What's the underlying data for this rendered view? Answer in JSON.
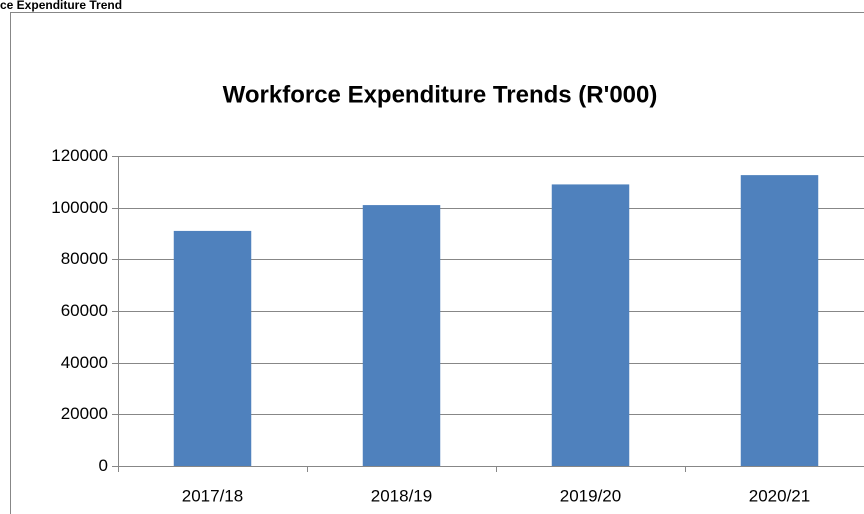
{
  "caption": "ce Expenditure Trend",
  "chart_data": {
    "type": "bar",
    "title": "Workforce Expenditure Trends (R'000)",
    "categories": [
      "2017/18",
      "2018/19",
      "2019/20",
      "2020/21"
    ],
    "values": [
      91000,
      101000,
      109000,
      112600
    ],
    "color": "#4f81bd",
    "ylim": [
      0,
      120000
    ],
    "yticks": [
      0,
      20000,
      40000,
      60000,
      80000,
      100000,
      120000
    ],
    "grid": true
  }
}
